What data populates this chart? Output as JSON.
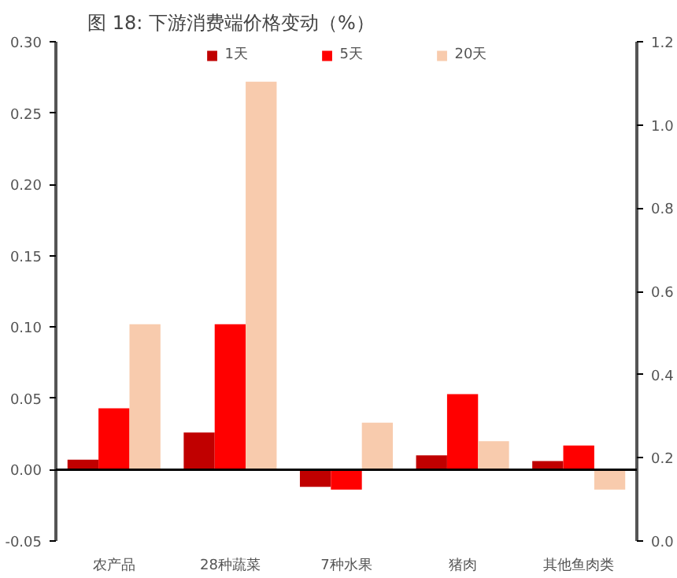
{
  "chart_data": {
    "type": "bar",
    "title": "图 18:      下游消费端价格变动（%）",
    "categories": [
      "农产品",
      "28种蔬菜",
      "7种水果",
      "猪肉",
      "其他鱼肉类"
    ],
    "series": [
      {
        "name": "1天",
        "color": "#c00000",
        "values": [
          0.007,
          0.026,
          -0.012,
          0.01,
          0.006
        ]
      },
      {
        "name": "5天",
        "color": "#ff0000",
        "values": [
          0.043,
          0.102,
          -0.014,
          0.053,
          0.017
        ]
      },
      {
        "name": "20天",
        "color": "#f8cbad",
        "values": [
          0.102,
          0.272,
          0.033,
          0.02,
          -0.014
        ]
      }
    ],
    "ylim": [
      -0.05,
      0.3
    ],
    "yticks": [
      {
        "value": -0.05,
        "label": "-0.05"
      },
      {
        "value": 0,
        "label": "0.00"
      },
      {
        "value": 0.05,
        "label": "0.05"
      },
      {
        "value": 0.1,
        "label": "0.10"
      },
      {
        "value": 0.15,
        "label": "0.15"
      },
      {
        "value": 0.2,
        "label": "0.20"
      },
      {
        "value": 0.25,
        "label": "0.25"
      },
      {
        "value": 0.3,
        "label": "0.30"
      }
    ],
    "y2lim": [
      0,
      1.2
    ],
    "y2ticks": [
      {
        "value": 0,
        "label": "0.0"
      },
      {
        "value": 0.2,
        "label": "0.2"
      },
      {
        "value": 0.4,
        "label": "0.4"
      },
      {
        "value": 0.6,
        "label": "0.6"
      },
      {
        "value": 0.8,
        "label": "0.8"
      },
      {
        "value": 1.0,
        "label": "1.0"
      },
      {
        "value": 1.2,
        "label": "1.2"
      }
    ],
    "ref_lines": [
      {
        "axis": "y",
        "value": 0,
        "color": "#000000"
      }
    ],
    "grid": false,
    "legend": "top"
  }
}
